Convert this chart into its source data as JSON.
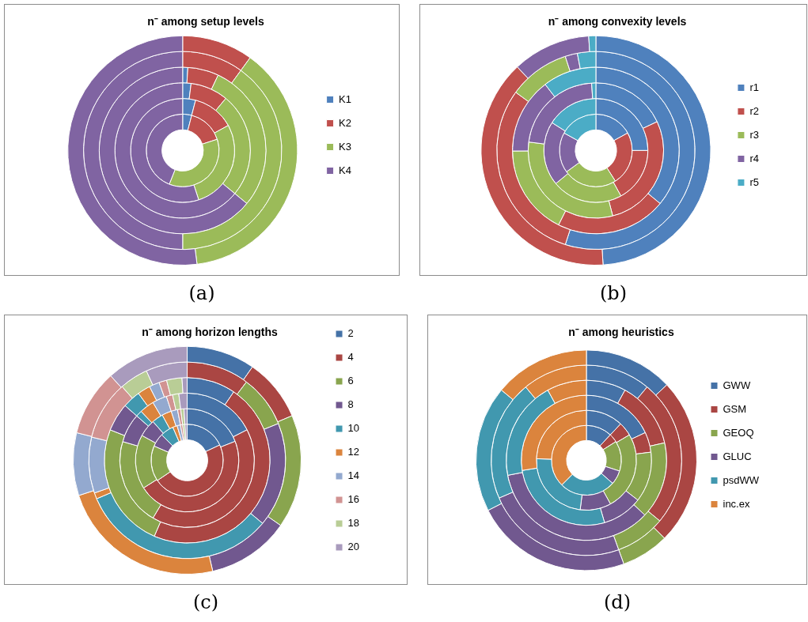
{
  "chart_data": [
    {
      "type": "donut",
      "title": "n⁻ among setup levels",
      "categories": [
        "K1",
        "K2",
        "K3",
        "K4"
      ],
      "colors": [
        "#4f81bd",
        "#c0504d",
        "#9bbb59",
        "#8064a2"
      ],
      "legend": "right",
      "annotations": [
        "(a)"
      ],
      "series": [
        {
          "values": [
            0,
            10,
            38,
            52
          ]
        },
        {
          "values": [
            0,
            10,
            40,
            50
          ]
        },
        {
          "values": [
            1,
            6,
            29,
            64
          ]
        },
        {
          "values": [
            2,
            9,
            25,
            64
          ]
        },
        {
          "values": [
            4,
            13,
            28,
            55
          ]
        },
        {
          "values": [
            4,
            16,
            36,
            44
          ]
        }
      ]
    },
    {
      "type": "donut",
      "title": "n⁻ among convexity levels",
      "categories": [
        "r1",
        "r2",
        "r3",
        "r4",
        "r5"
      ],
      "colors": [
        "#4f81bd",
        "#c0504d",
        "#9bbb59",
        "#8064a2",
        "#4bacc6"
      ],
      "legend": "right",
      "annotations": [
        "(b)"
      ],
      "series": [
        {
          "values": [
            49,
            39,
            0,
            11,
            1
          ]
        },
        {
          "values": [
            55,
            30,
            10,
            2,
            3
          ]
        },
        {
          "values": [
            36,
            21.4,
            17.5,
            14.7,
            10.4
          ]
        },
        {
          "values": [
            18,
            28,
            31,
            22,
            1
          ]
        },
        {
          "values": [
            25,
            17,
            22,
            20,
            16
          ]
        },
        {
          "values": [
            17,
            24,
            24,
            18,
            17
          ]
        }
      ]
    },
    {
      "type": "donut",
      "title": "n⁻ among horizon lengths",
      "categories": [
        "2",
        "4",
        "6",
        "8",
        "10",
        "12",
        "14",
        "16",
        "18",
        "20"
      ],
      "colors": [
        "#4572a7",
        "#aa4643",
        "#89a54e",
        "#71588f",
        "#4198af",
        "#db843d",
        "#93a9cf",
        "#d19392",
        "#b9cd96",
        "#a99bbd"
      ],
      "legend": "top right",
      "annotations": [
        "(c)"
      ],
      "series": [
        {
          "values": [
            9.7,
            8.9,
            16.1,
            11.7,
            0,
            23.6,
            8.9,
            9.4,
            0,
            11.7
          ]
        },
        {
          "values": [
            0,
            10.3,
            8.6,
            17.2,
            32.5,
            1,
            9.2,
            9.7,
            4.7,
            6.8
          ]
        },
        {
          "values": [
            9.5,
            47,
            24.5,
            5.5,
            3.5,
            2.5,
            2,
            1.5,
            3,
            1
          ]
        },
        {
          "values": [
            17.5,
            41,
            21,
            7,
            1.5,
            3.5,
            3.5,
            1.5,
            1.5,
            2
          ]
        },
        {
          "values": [
            19,
            47,
            17,
            5.5,
            3.5,
            3,
            2,
            1,
            1,
            1
          ]
        },
        {
          "values": [
            18,
            47.5,
            16,
            6,
            6,
            2,
            1.5,
            1,
            1,
            1
          ]
        }
      ]
    },
    {
      "type": "donut",
      "title": "n⁻ among heuristics",
      "categories": [
        "GWW",
        "GSM",
        "GEOQ",
        "GLUC",
        "psdWW",
        "inc.ex"
      ],
      "colors": [
        "#4572a7",
        "#aa4643",
        "#89a54e",
        "#71588f",
        "#4198af",
        "#db843d"
      ],
      "legend": "right",
      "annotations": [
        "(d)"
      ],
      "series": [
        {
          "values": [
            13,
            24.5,
            7,
            23,
            18.5,
            14
          ]
        },
        {
          "values": [
            11,
            25,
            8.5,
            24,
            20.5,
            11
          ]
        },
        {
          "values": [
            8,
            13.5,
            15.5,
            35,
            20,
            8
          ]
        },
        {
          "values": [
            18,
            5,
            12.5,
            10,
            27,
            27.5
          ]
        },
        {
          "values": [
            12,
            4.5,
            25.5,
            10,
            23.5,
            24.5
          ]
        },
        {
          "values": [
            12,
            4,
            14,
            6.5,
            26,
            37.5
          ]
        }
      ]
    }
  ]
}
